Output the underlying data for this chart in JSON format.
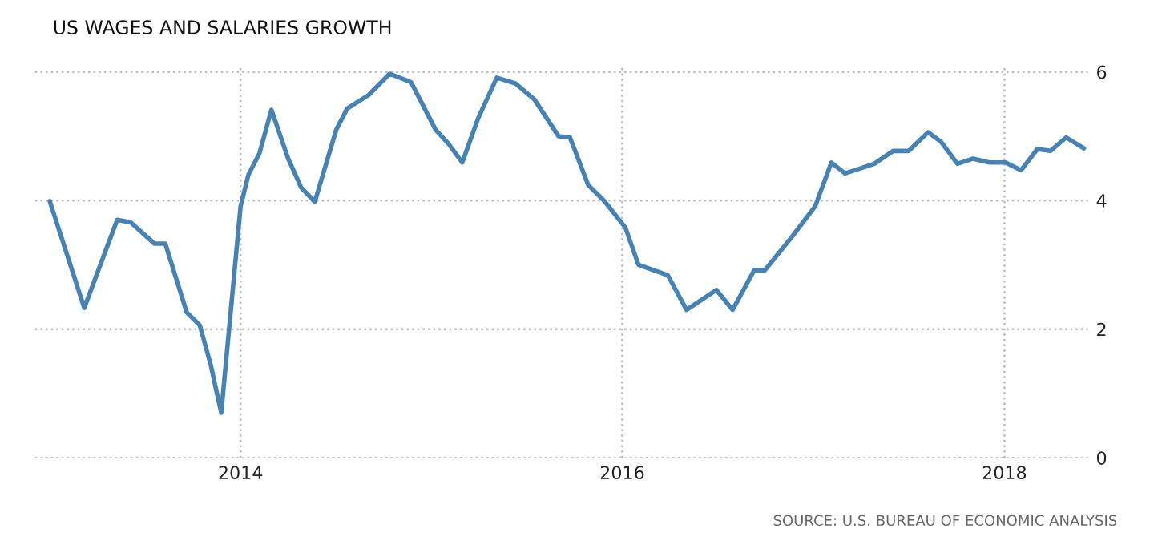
{
  "chart_data": {
    "type": "line",
    "title": "US WAGES AND SALARIES GROWTH",
    "x": [
      "2013-01-01",
      "2013-03-08",
      "2013-05-10",
      "2013-06-05",
      "2013-07-20",
      "2013-08-10",
      "2013-09-20",
      "2013-10-15",
      "2013-11-05",
      "2013-11-25",
      "2014-01-01",
      "2014-01-16",
      "2014-02-06",
      "2014-03-01",
      "2014-04-02",
      "2014-04-27",
      "2014-05-23",
      "2014-07-03",
      "2014-07-24",
      "2014-09-03",
      "2014-10-13",
      "2014-11-23",
      "2015-01-09",
      "2015-02-03",
      "2015-03-01",
      "2015-03-31",
      "2015-05-06",
      "2015-06-11",
      "2015-07-17",
      "2015-09-01",
      "2015-09-23",
      "2015-10-28",
      "2015-11-28",
      "2016-01-07",
      "2016-02-01",
      "2016-03-28",
      "2016-05-03",
      "2016-06-29",
      "2016-07-30",
      "2016-09-09",
      "2016-09-29",
      "2016-11-19",
      "2017-01-04",
      "2017-02-04",
      "2017-03-02",
      "2017-04-27",
      "2017-06-02",
      "2017-07-02",
      "2017-08-08",
      "2017-09-02",
      "2017-10-03",
      "2017-11-02",
      "2017-12-03",
      "2018-01-03",
      "2018-02-02",
      "2018-03-05",
      "2018-03-30",
      "2018-04-29",
      "2018-06-02"
    ],
    "series": [
      {
        "color": "#4682b4",
        "values": [
          3.99,
          2.33,
          3.7,
          3.66,
          3.33,
          3.33,
          2.26,
          2.06,
          1.44,
          0.7,
          3.91,
          4.4,
          4.73,
          5.41,
          4.65,
          4.2,
          3.98,
          5.1,
          5.43,
          5.64,
          5.97,
          5.84,
          5.1,
          4.88,
          4.59,
          5.27,
          5.91,
          5.82,
          5.57,
          5.0,
          4.98,
          4.24,
          3.99,
          3.58,
          3.0,
          2.84,
          2.3,
          2.61,
          2.3,
          2.91,
          2.91,
          3.42,
          3.91,
          4.59,
          4.42,
          4.57,
          4.77,
          4.77,
          5.06,
          4.91,
          4.57,
          4.65,
          4.59,
          4.59,
          4.47,
          4.8,
          4.77,
          4.98,
          4.81
        ]
      }
    ],
    "xlim": [
      "2012-12-04",
      "2018-06-10"
    ],
    "xticks": [
      {
        "value": "2014-01-01",
        "label": "2014"
      },
      {
        "value": "2016-01-01",
        "label": "2016"
      },
      {
        "value": "2018-01-01",
        "label": "2018"
      }
    ],
    "ylim": [
      0,
      6.1
    ],
    "yticks": [
      0,
      2,
      4,
      6
    ],
    "grid": true,
    "legend": false,
    "marker": "none",
    "line_style": "solid",
    "annotations": [
      "SOURCE: U.S. BUREAU OF ECONOMIC ANALYSIS"
    ]
  }
}
